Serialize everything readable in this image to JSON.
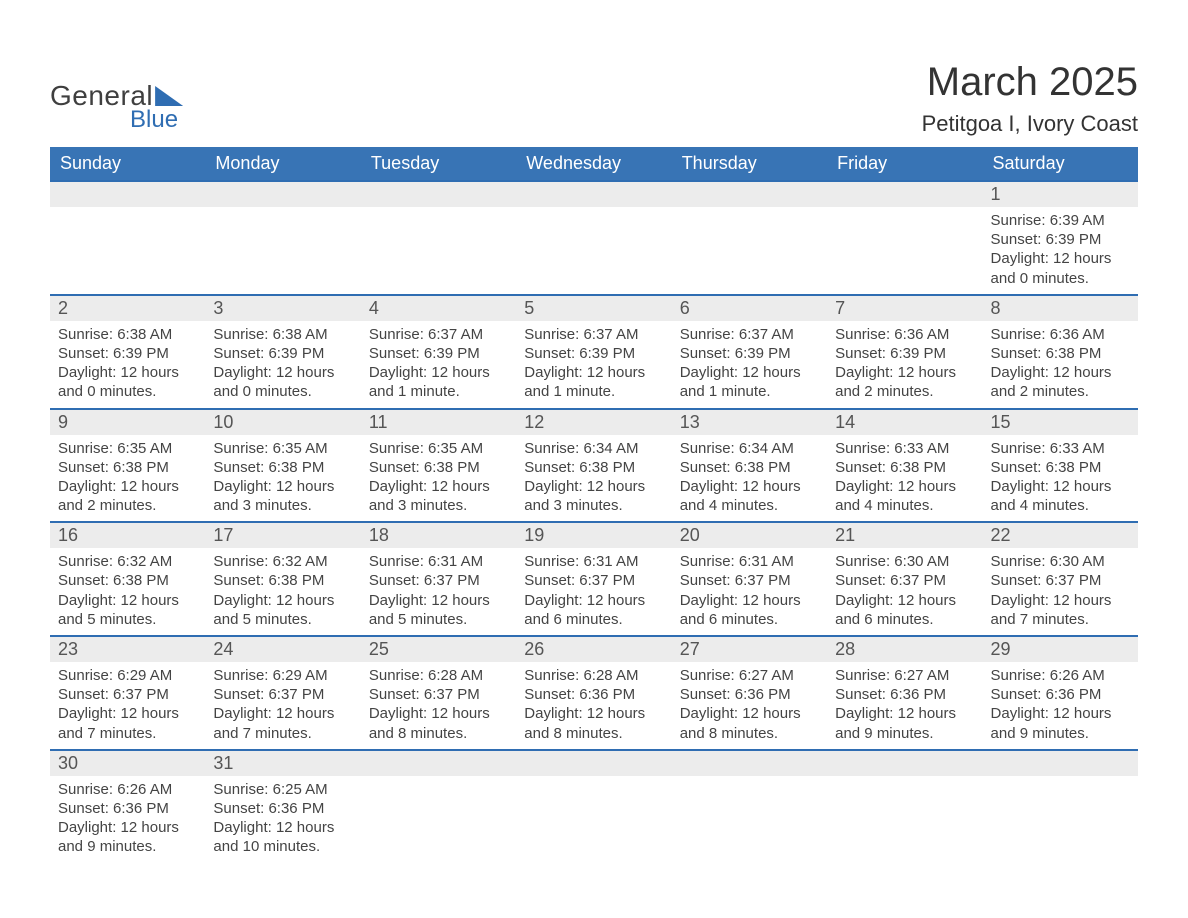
{
  "brand": {
    "general": "General",
    "blue": "Blue"
  },
  "title": "March 2025",
  "location": "Petitgoa I, Ivory Coast",
  "colors": {
    "header_bg": "#3874b5",
    "header_text": "#ffffff",
    "row_divider": "#2f6db2",
    "daynum_bg": "#ececec",
    "text": "#333333",
    "logo_blue": "#2f6db2"
  },
  "weekdays": [
    "Sunday",
    "Monday",
    "Tuesday",
    "Wednesday",
    "Thursday",
    "Friday",
    "Saturday"
  ],
  "weeks": [
    [
      null,
      null,
      null,
      null,
      null,
      null,
      {
        "n": "1",
        "sr": "Sunrise: 6:39 AM",
        "ss": "Sunset: 6:39 PM",
        "dl": "Daylight: 12 hours and 0 minutes."
      }
    ],
    [
      {
        "n": "2",
        "sr": "Sunrise: 6:38 AM",
        "ss": "Sunset: 6:39 PM",
        "dl": "Daylight: 12 hours and 0 minutes."
      },
      {
        "n": "3",
        "sr": "Sunrise: 6:38 AM",
        "ss": "Sunset: 6:39 PM",
        "dl": "Daylight: 12 hours and 0 minutes."
      },
      {
        "n": "4",
        "sr": "Sunrise: 6:37 AM",
        "ss": "Sunset: 6:39 PM",
        "dl": "Daylight: 12 hours and 1 minute."
      },
      {
        "n": "5",
        "sr": "Sunrise: 6:37 AM",
        "ss": "Sunset: 6:39 PM",
        "dl": "Daylight: 12 hours and 1 minute."
      },
      {
        "n": "6",
        "sr": "Sunrise: 6:37 AM",
        "ss": "Sunset: 6:39 PM",
        "dl": "Daylight: 12 hours and 1 minute."
      },
      {
        "n": "7",
        "sr": "Sunrise: 6:36 AM",
        "ss": "Sunset: 6:39 PM",
        "dl": "Daylight: 12 hours and 2 minutes."
      },
      {
        "n": "8",
        "sr": "Sunrise: 6:36 AM",
        "ss": "Sunset: 6:38 PM",
        "dl": "Daylight: 12 hours and 2 minutes."
      }
    ],
    [
      {
        "n": "9",
        "sr": "Sunrise: 6:35 AM",
        "ss": "Sunset: 6:38 PM",
        "dl": "Daylight: 12 hours and 2 minutes."
      },
      {
        "n": "10",
        "sr": "Sunrise: 6:35 AM",
        "ss": "Sunset: 6:38 PM",
        "dl": "Daylight: 12 hours and 3 minutes."
      },
      {
        "n": "11",
        "sr": "Sunrise: 6:35 AM",
        "ss": "Sunset: 6:38 PM",
        "dl": "Daylight: 12 hours and 3 minutes."
      },
      {
        "n": "12",
        "sr": "Sunrise: 6:34 AM",
        "ss": "Sunset: 6:38 PM",
        "dl": "Daylight: 12 hours and 3 minutes."
      },
      {
        "n": "13",
        "sr": "Sunrise: 6:34 AM",
        "ss": "Sunset: 6:38 PM",
        "dl": "Daylight: 12 hours and 4 minutes."
      },
      {
        "n": "14",
        "sr": "Sunrise: 6:33 AM",
        "ss": "Sunset: 6:38 PM",
        "dl": "Daylight: 12 hours and 4 minutes."
      },
      {
        "n": "15",
        "sr": "Sunrise: 6:33 AM",
        "ss": "Sunset: 6:38 PM",
        "dl": "Daylight: 12 hours and 4 minutes."
      }
    ],
    [
      {
        "n": "16",
        "sr": "Sunrise: 6:32 AM",
        "ss": "Sunset: 6:38 PM",
        "dl": "Daylight: 12 hours and 5 minutes."
      },
      {
        "n": "17",
        "sr": "Sunrise: 6:32 AM",
        "ss": "Sunset: 6:38 PM",
        "dl": "Daylight: 12 hours and 5 minutes."
      },
      {
        "n": "18",
        "sr": "Sunrise: 6:31 AM",
        "ss": "Sunset: 6:37 PM",
        "dl": "Daylight: 12 hours and 5 minutes."
      },
      {
        "n": "19",
        "sr": "Sunrise: 6:31 AM",
        "ss": "Sunset: 6:37 PM",
        "dl": "Daylight: 12 hours and 6 minutes."
      },
      {
        "n": "20",
        "sr": "Sunrise: 6:31 AM",
        "ss": "Sunset: 6:37 PM",
        "dl": "Daylight: 12 hours and 6 minutes."
      },
      {
        "n": "21",
        "sr": "Sunrise: 6:30 AM",
        "ss": "Sunset: 6:37 PM",
        "dl": "Daylight: 12 hours and 6 minutes."
      },
      {
        "n": "22",
        "sr": "Sunrise: 6:30 AM",
        "ss": "Sunset: 6:37 PM",
        "dl": "Daylight: 12 hours and 7 minutes."
      }
    ],
    [
      {
        "n": "23",
        "sr": "Sunrise: 6:29 AM",
        "ss": "Sunset: 6:37 PM",
        "dl": "Daylight: 12 hours and 7 minutes."
      },
      {
        "n": "24",
        "sr": "Sunrise: 6:29 AM",
        "ss": "Sunset: 6:37 PM",
        "dl": "Daylight: 12 hours and 7 minutes."
      },
      {
        "n": "25",
        "sr": "Sunrise: 6:28 AM",
        "ss": "Sunset: 6:37 PM",
        "dl": "Daylight: 12 hours and 8 minutes."
      },
      {
        "n": "26",
        "sr": "Sunrise: 6:28 AM",
        "ss": "Sunset: 6:36 PM",
        "dl": "Daylight: 12 hours and 8 minutes."
      },
      {
        "n": "27",
        "sr": "Sunrise: 6:27 AM",
        "ss": "Sunset: 6:36 PM",
        "dl": "Daylight: 12 hours and 8 minutes."
      },
      {
        "n": "28",
        "sr": "Sunrise: 6:27 AM",
        "ss": "Sunset: 6:36 PM",
        "dl": "Daylight: 12 hours and 9 minutes."
      },
      {
        "n": "29",
        "sr": "Sunrise: 6:26 AM",
        "ss": "Sunset: 6:36 PM",
        "dl": "Daylight: 12 hours and 9 minutes."
      }
    ],
    [
      {
        "n": "30",
        "sr": "Sunrise: 6:26 AM",
        "ss": "Sunset: 6:36 PM",
        "dl": "Daylight: 12 hours and 9 minutes."
      },
      {
        "n": "31",
        "sr": "Sunrise: 6:25 AM",
        "ss": "Sunset: 6:36 PM",
        "dl": "Daylight: 12 hours and 10 minutes."
      },
      null,
      null,
      null,
      null,
      null
    ]
  ]
}
